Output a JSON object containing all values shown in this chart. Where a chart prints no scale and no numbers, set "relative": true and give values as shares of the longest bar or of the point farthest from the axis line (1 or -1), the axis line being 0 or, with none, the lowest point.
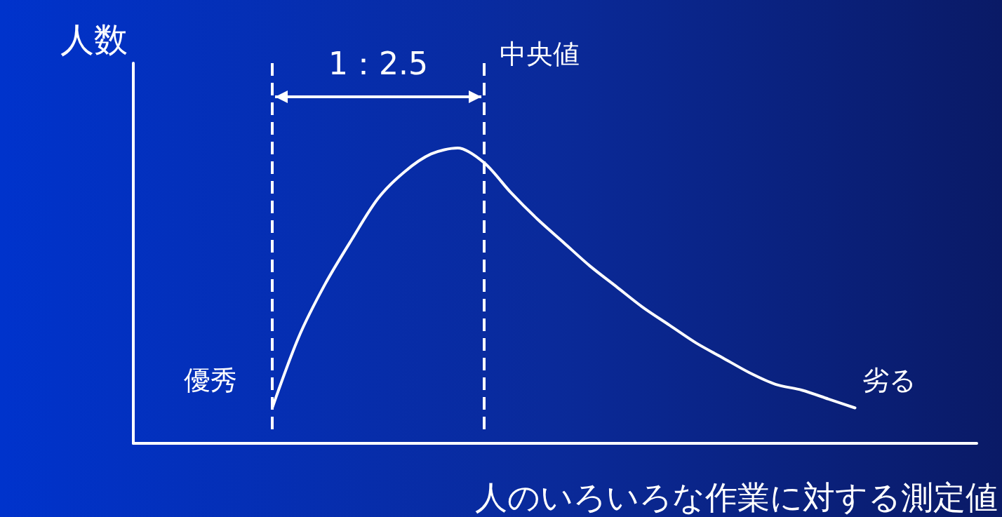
{
  "chart_data": {
    "type": "line",
    "relative": true,
    "ylabel": "人数",
    "xlabel": "人のいろいろな作業に対する測定値",
    "categories": [
      null,
      null,
      null,
      null,
      null,
      null,
      null,
      null,
      null,
      null,
      null,
      null,
      null,
      null,
      null,
      null,
      null,
      null,
      null,
      null,
      null,
      null,
      null
    ],
    "series": [
      {
        "color": "#ffffff",
        "values": [
          0.12,
          0.36,
          0.54,
          0.69,
          0.83,
          0.92,
          0.98,
          1.0,
          0.95,
          0.85,
          0.76,
          0.68,
          0.6,
          0.53,
          0.46,
          0.4,
          0.34,
          0.29,
          0.24,
          0.2,
          0.18,
          0.15,
          0.12
        ]
      }
    ],
    "annotations": [
      "1：2.5",
      "優秀",
      "劣る",
      "中央値"
    ],
    "marker": "none",
    "line_style": "solid",
    "grid": false
  }
}
